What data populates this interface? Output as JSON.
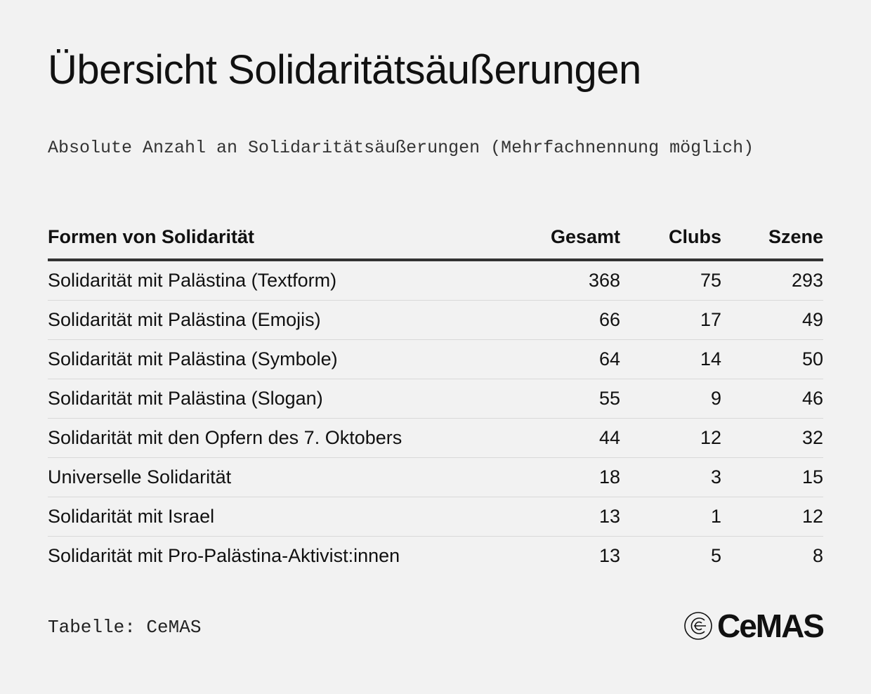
{
  "header": {
    "title": "Übersicht Solidaritätsäußerungen",
    "subtitle": "Absolute Anzahl an Solidaritätsäußerungen (Mehrfachnennung möglich)"
  },
  "table": {
    "columns": [
      "Formen von Solidarität",
      "Gesamt",
      "Clubs",
      "Szene"
    ],
    "rows": [
      [
        "Solidarität mit Palästina (Textform)",
        368,
        75,
        293
      ],
      [
        "Solidarität mit Palästina (Emojis)",
        66,
        17,
        49
      ],
      [
        "Solidarität mit Palästina (Symbole)",
        64,
        14,
        50
      ],
      [
        "Solidarität mit Palästina (Slogan)",
        55,
        9,
        46
      ],
      [
        "Solidarität mit den Opfern des 7. Oktobers",
        44,
        12,
        32
      ],
      [
        "Universelle Solidarität",
        18,
        3,
        15
      ],
      [
        "Solidarität mit Israel",
        13,
        1,
        12
      ],
      [
        "Solidarität mit Pro-Palästina-Aktivist:innen",
        13,
        5,
        8
      ]
    ]
  },
  "footer": {
    "source": "Tabelle: CeMAS",
    "logo": "CeMAS"
  }
}
